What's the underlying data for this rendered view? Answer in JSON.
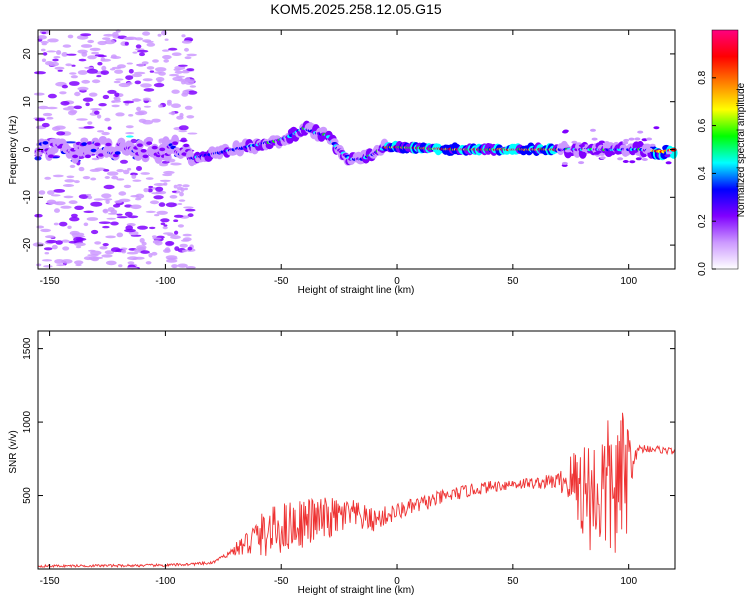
{
  "title": "KOM5.2025.258.12.05.G15",
  "chart_data": [
    {
      "type": "heatmap",
      "xlabel": "Height of straight line (km)",
      "ylabel": "Frequency (Hz)",
      "xlim": [
        -155,
        120
      ],
      "ylim": [
        -25,
        25
      ],
      "xticks": [
        -150,
        -100,
        -50,
        0,
        50,
        100
      ],
      "yticks": [
        -20,
        -10,
        0,
        10,
        20
      ],
      "colorbar": {
        "label": "Normalized spectral amplitude",
        "range": [
          0,
          1
        ],
        "ticks": [
          "0.0",
          "0.2",
          "0.4",
          "0.6",
          "0.8"
        ],
        "colors": [
          "#ffffff",
          "#cc99ff",
          "#8000ff",
          "#0000ff",
          "#00ffff",
          "#00ff00",
          "#ffff00",
          "#ff8000",
          "#ff0000",
          "#ff0080"
        ]
      },
      "ridge_frequency": {
        "x": [
          -90,
          -80,
          -70,
          -60,
          -50,
          -45,
          -40,
          -35,
          -30,
          -25,
          -20,
          -15,
          -10,
          -5,
          0,
          25,
          50,
          75,
          85,
          95,
          105,
          115,
          120
        ],
        "y": [
          -2,
          -1,
          0,
          1,
          2,
          3,
          4.5,
          3.5,
          3,
          0,
          -2,
          -2,
          -1,
          0.5,
          0.5,
          0,
          0,
          0,
          0,
          0,
          0,
          -0.5,
          0
        ]
      }
    },
    {
      "type": "line",
      "xlabel": "Height of straight line (km)",
      "ylabel": "SNR (v/v)",
      "xlim": [
        -155,
        120
      ],
      "ylim": [
        0,
        1620
      ],
      "xticks": [
        -150,
        -100,
        -50,
        0,
        50,
        100
      ],
      "yticks": [
        500,
        1000,
        1500
      ],
      "color": "#ee3333",
      "trend": {
        "x": [
          -155,
          -100,
          -80,
          -70,
          -60,
          -50,
          -40,
          -30,
          -20,
          -10,
          0,
          10,
          20,
          30,
          40,
          50,
          60,
          70,
          75,
          80,
          85,
          90,
          95,
          100,
          105,
          110,
          115,
          120
        ],
        "y": [
          20,
          25,
          40,
          130,
          220,
          280,
          320,
          340,
          370,
          330,
          390,
          440,
          490,
          530,
          560,
          580,
          585,
          600,
          600,
          560,
          500,
          550,
          520,
          700,
          820,
          820,
          810,
          800
        ]
      },
      "noise_amplitude": {
        "x": [
          -155,
          -75,
          -70,
          -60,
          -50,
          -40,
          -30,
          -20,
          -10,
          0,
          20,
          40,
          60,
          70,
          75,
          80,
          85,
          90,
          95,
          100,
          102,
          110,
          120
        ],
        "y": [
          8,
          10,
          40,
          150,
          180,
          170,
          150,
          110,
          80,
          60,
          50,
          40,
          40,
          60,
          200,
          380,
          420,
          480,
          500,
          450,
          40,
          25,
          25
        ]
      }
    }
  ]
}
